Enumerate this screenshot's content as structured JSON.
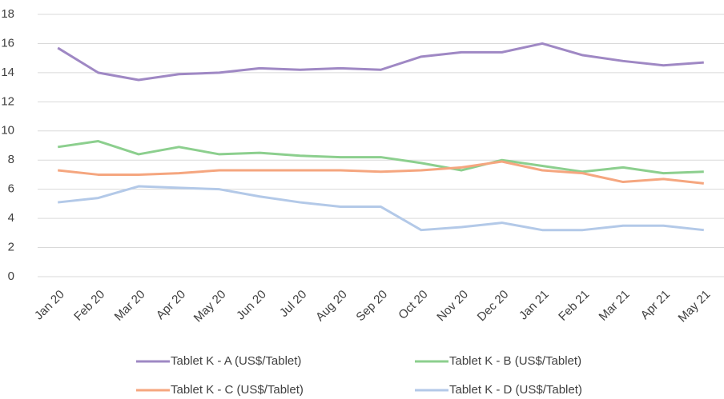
{
  "chart_data": {
    "type": "line",
    "categories": [
      "Jan 20",
      "Feb 20",
      "Mar 20",
      "Apr 20",
      "May 20",
      "Jun 20",
      "Jul 20",
      "Aug 20",
      "Sep 20",
      "Oct 20",
      "Nov 20",
      "Dec 20",
      "Jan 21",
      "Feb 21",
      "Mar 21",
      "Apr 21",
      "May 21"
    ],
    "series": [
      {
        "name": "Tablet K - A (US$/Tablet)",
        "color": "#9f88c4",
        "values": [
          15.7,
          14.0,
          13.5,
          13.9,
          14.0,
          14.3,
          14.2,
          14.3,
          14.2,
          15.1,
          15.4,
          15.4,
          16.0,
          15.2,
          14.8,
          14.5,
          14.7
        ]
      },
      {
        "name": "Tablet K - B (US$/Tablet)",
        "color": "#8ccf8e",
        "values": [
          8.9,
          9.3,
          8.4,
          8.9,
          8.4,
          8.5,
          8.3,
          8.2,
          8.2,
          7.8,
          7.3,
          8.0,
          7.6,
          7.2,
          7.5,
          7.1,
          7.2
        ]
      },
      {
        "name": "Tablet K - C (US$/Tablet)",
        "color": "#f5a67f",
        "values": [
          7.3,
          7.0,
          7.0,
          7.1,
          7.3,
          7.3,
          7.3,
          7.3,
          7.2,
          7.3,
          7.5,
          7.9,
          7.3,
          7.1,
          6.5,
          6.7,
          6.4
        ]
      },
      {
        "name": "Tablet K - D (US$/Tablet)",
        "color": "#b3c9e8",
        "values": [
          5.1,
          5.4,
          6.2,
          6.1,
          6.0,
          5.5,
          5.1,
          4.8,
          4.8,
          3.2,
          3.4,
          3.7,
          3.2,
          3.2,
          3.5,
          3.5,
          3.2
        ]
      }
    ],
    "ylim": [
      0,
      18
    ],
    "yticks": [
      0,
      2,
      4,
      6,
      8,
      10,
      12,
      14,
      16,
      18
    ],
    "grid": true,
    "legend": "bottom"
  }
}
